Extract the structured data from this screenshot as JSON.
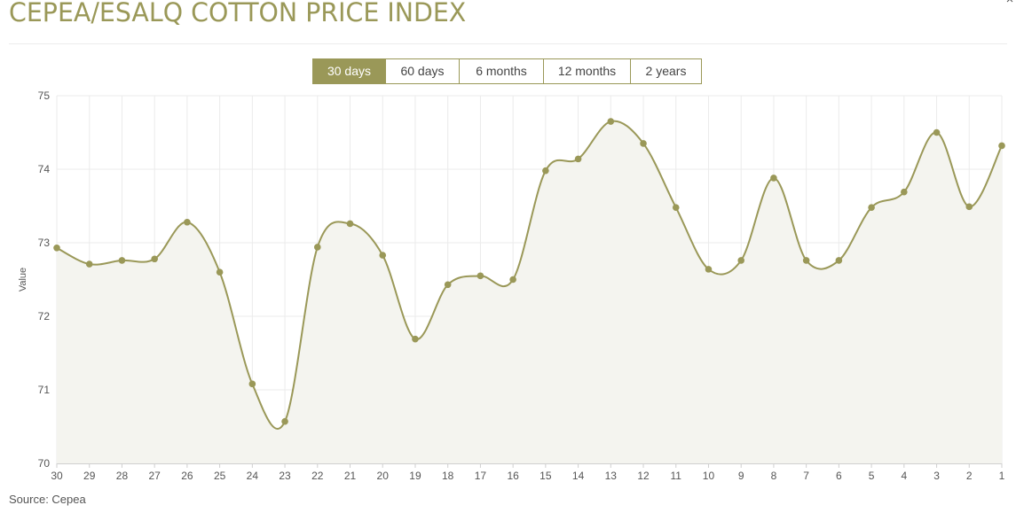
{
  "header": {
    "title": "CEPEA/ESALQ COTTON PRICE INDEX",
    "close_glyph": "×"
  },
  "range_tabs": [
    {
      "label": "30 days",
      "active": true
    },
    {
      "label": "60 days",
      "active": false
    },
    {
      "label": "6 months",
      "active": false
    },
    {
      "label": "12 months",
      "active": false
    },
    {
      "label": "2 years",
      "active": false
    }
  ],
  "footer": {
    "source": "Source: Cepea"
  },
  "colors": {
    "accent": "#9a9858",
    "line": "#9a9858",
    "area": "#f4f4ef",
    "grid": "#ebebeb"
  },
  "icons": {
    "close": "close-icon"
  },
  "chart_data": {
    "type": "area",
    "title": "",
    "xlabel": "",
    "ylabel": "Value",
    "ylim": [
      70,
      75
    ],
    "yticks": [
      70,
      71,
      72,
      73,
      74,
      75
    ],
    "grid": true,
    "categories": [
      "30",
      "29",
      "28",
      "27",
      "26",
      "25",
      "24",
      "23",
      "22",
      "21",
      "20",
      "19",
      "18",
      "17",
      "16",
      "15",
      "14",
      "13",
      "12",
      "11",
      "10",
      "9",
      "8",
      "7",
      "6",
      "5",
      "4",
      "3",
      "2",
      "1"
    ],
    "values": [
      72.93,
      72.71,
      72.76,
      72.78,
      73.28,
      72.6,
      71.08,
      70.57,
      72.94,
      73.26,
      72.83,
      71.69,
      72.43,
      72.55,
      72.5,
      73.98,
      74.14,
      74.65,
      74.35,
      73.48,
      72.64,
      72.76,
      73.88,
      72.76,
      72.76,
      73.48,
      73.69,
      74.5,
      73.49,
      74.32
    ]
  }
}
